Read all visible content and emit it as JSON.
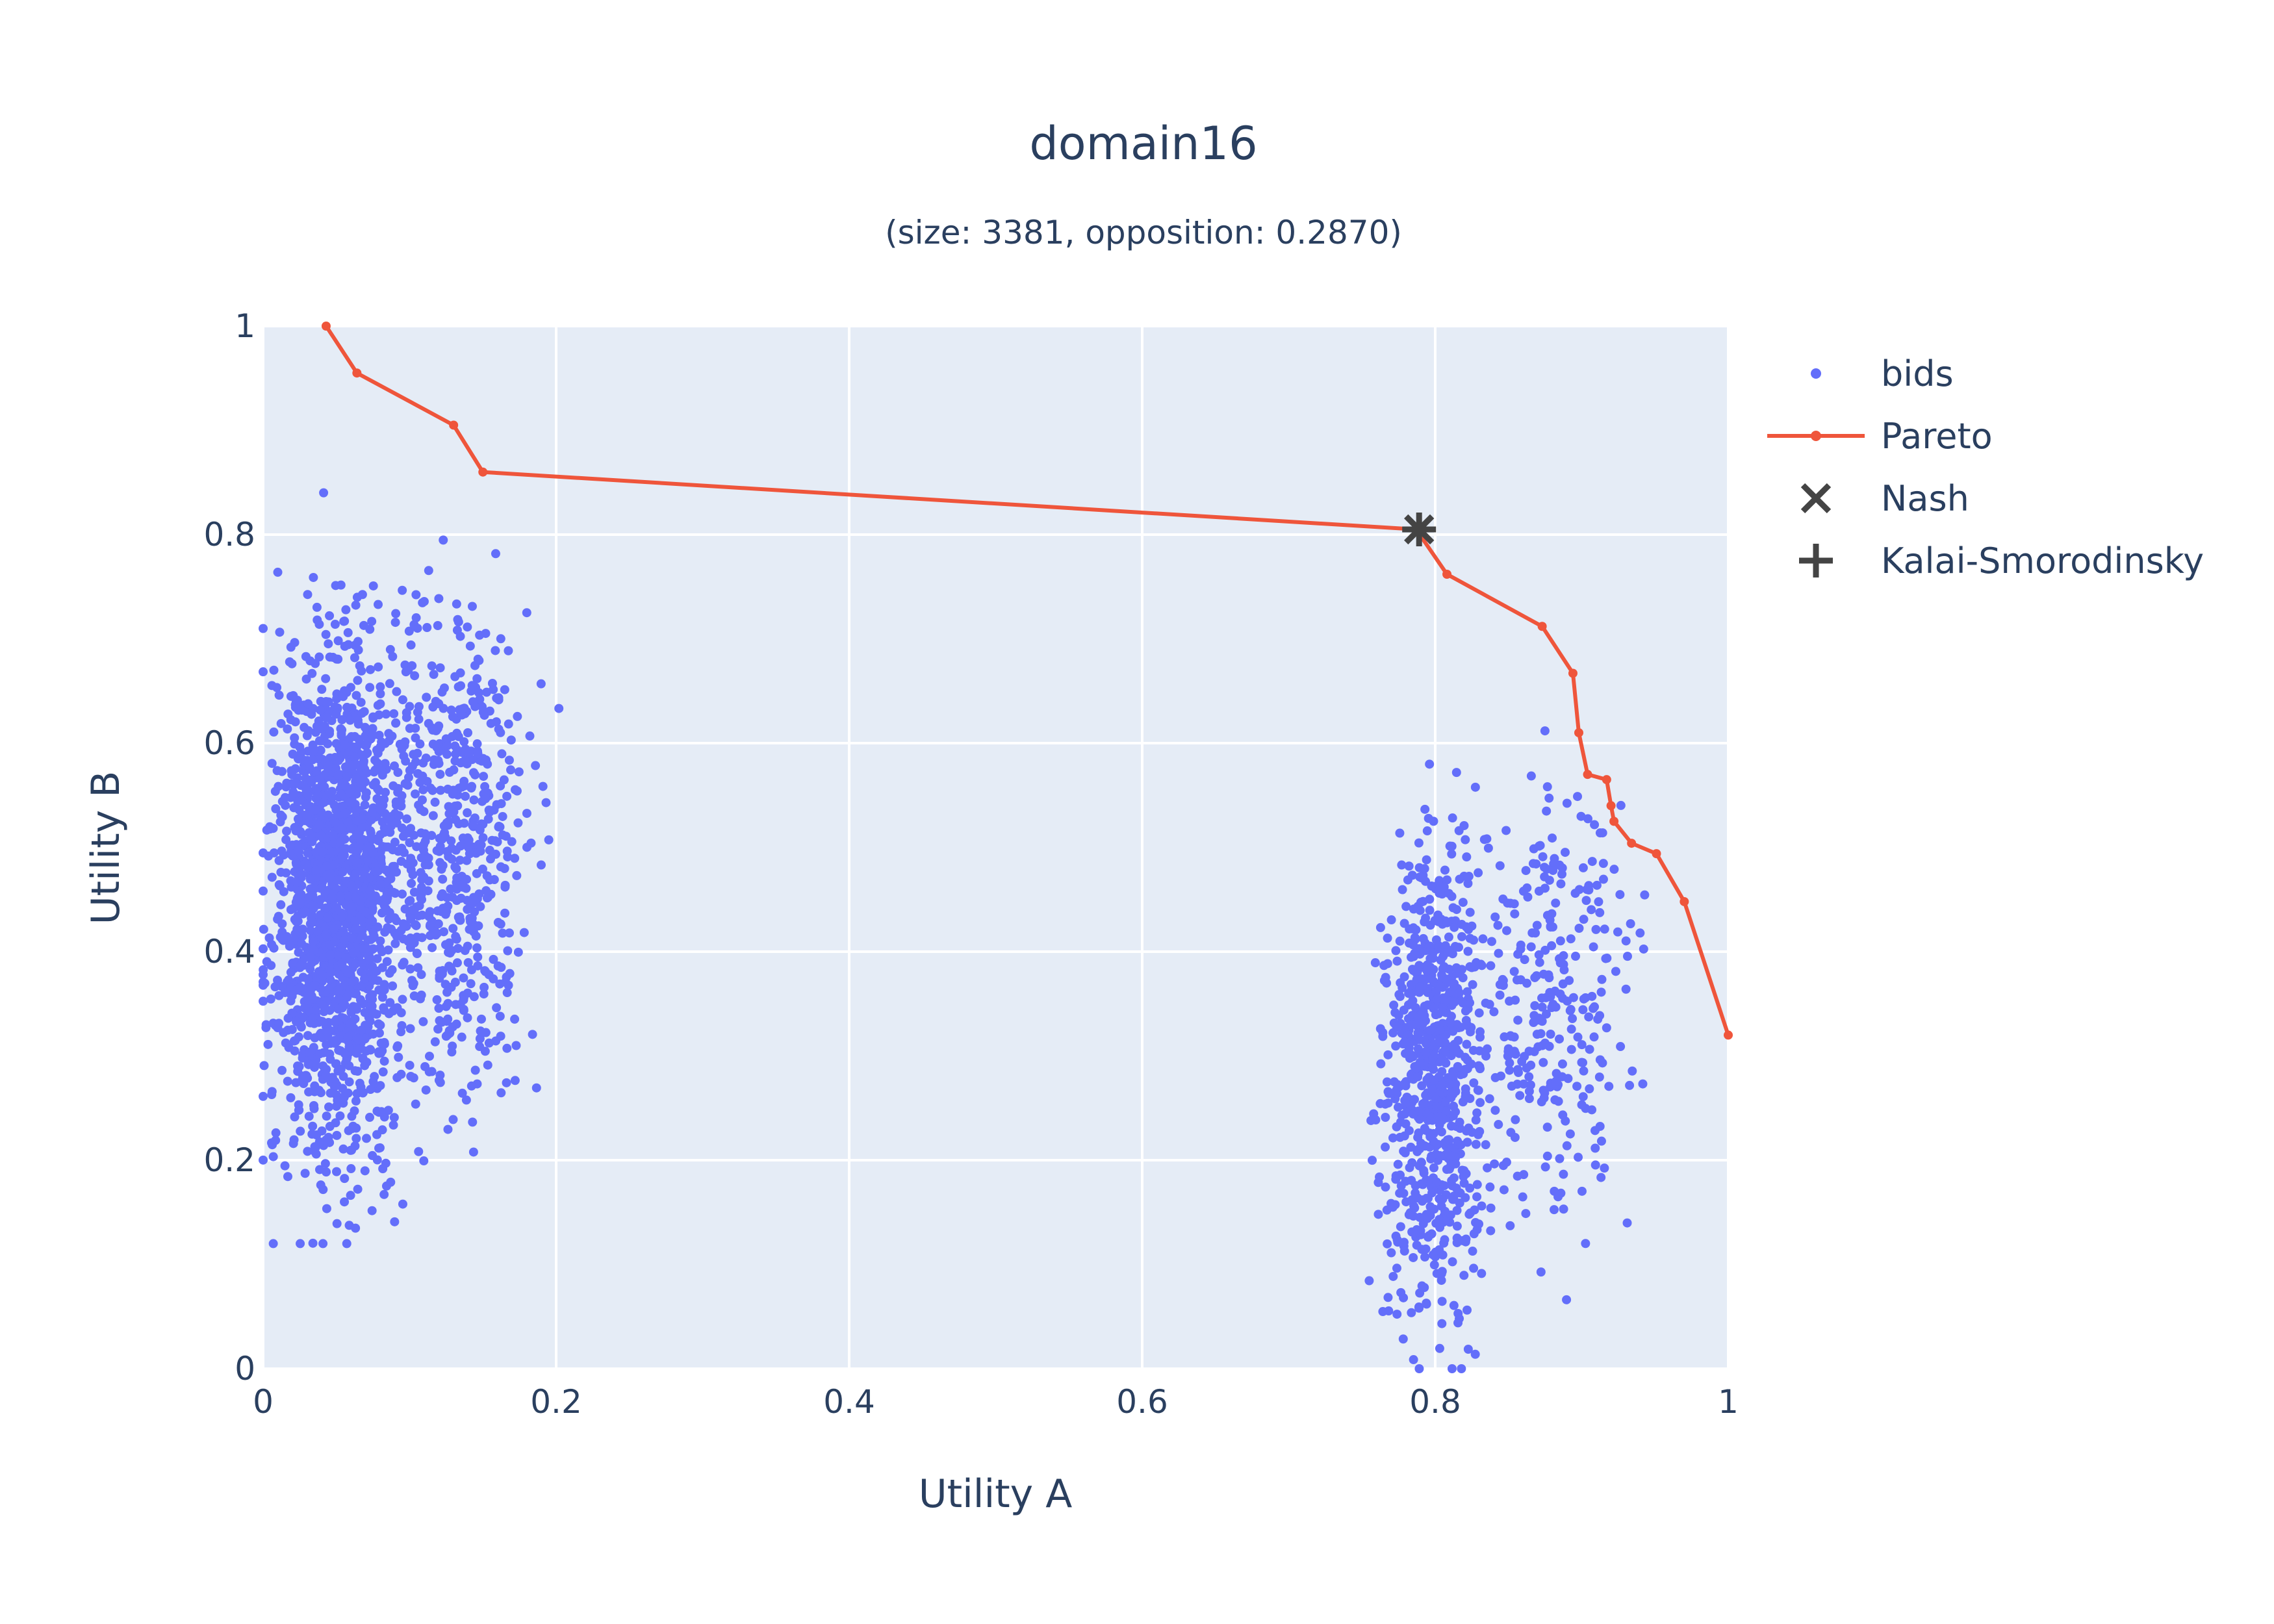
{
  "chart_data": {
    "type": "scatter",
    "title": "domain16",
    "subtitle": "(size: 3381, opposition: 0.2870)",
    "xlabel": "Utility A",
    "ylabel": "Utility B",
    "xlim": [
      0,
      1
    ],
    "ylim": [
      0,
      1
    ],
    "x_ticks": [
      "0",
      "0.2",
      "0.4",
      "0.6",
      "0.8",
      "1"
    ],
    "y_ticks": [
      "0",
      "0.2",
      "0.4",
      "0.6",
      "0.8",
      "1"
    ],
    "grid": true,
    "legend_position": "right",
    "colors": {
      "bids": "#636efa",
      "pareto": "#ef553b",
      "markers": "#444444",
      "plot_bg": "#e5ecf6",
      "grid": "#ffffff"
    },
    "legend": [
      {
        "name": "bids",
        "symbol": "dot"
      },
      {
        "name": "Pareto",
        "symbol": "line-dot"
      },
      {
        "name": "Nash",
        "symbol": "x"
      },
      {
        "name": "Kalai-Smorodinsky",
        "symbol": "cross"
      }
    ],
    "bids_clusters": [
      {
        "x_range": [
          0.0,
          0.12
        ],
        "y_range": [
          0.12,
          0.9
        ],
        "count": 1700,
        "center": [
          0.05,
          0.45
        ]
      },
      {
        "x_range": [
          0.08,
          0.22
        ],
        "y_range": [
          0.13,
          0.85
        ],
        "count": 600,
        "center": [
          0.13,
          0.5
        ]
      },
      {
        "x_range": [
          0.75,
          0.85
        ],
        "y_range": [
          0.0,
          0.68
        ],
        "count": 800,
        "center": [
          0.8,
          0.28
        ]
      },
      {
        "x_range": [
          0.82,
          0.96
        ],
        "y_range": [
          0.06,
          0.65
        ],
        "count": 280,
        "center": [
          0.88,
          0.35
        ]
      }
    ],
    "pareto": [
      {
        "x": 0.043,
        "y": 1.0
      },
      {
        "x": 0.064,
        "y": 0.955
      },
      {
        "x": 0.13,
        "y": 0.905
      },
      {
        "x": 0.15,
        "y": 0.86
      },
      {
        "x": 0.787,
        "y": 0.805
      },
      {
        "x": 0.808,
        "y": 0.762
      },
      {
        "x": 0.873,
        "y": 0.712
      },
      {
        "x": 0.894,
        "y": 0.667
      },
      {
        "x": 0.898,
        "y": 0.61
      },
      {
        "x": 0.904,
        "y": 0.57
      },
      {
        "x": 0.917,
        "y": 0.565
      },
      {
        "x": 0.92,
        "y": 0.54
      },
      {
        "x": 0.922,
        "y": 0.525
      },
      {
        "x": 0.934,
        "y": 0.504
      },
      {
        "x": 0.951,
        "y": 0.494
      },
      {
        "x": 0.97,
        "y": 0.448
      },
      {
        "x": 1.0,
        "y": 0.32
      }
    ],
    "nash": {
      "x": 0.789,
      "y": 0.805
    },
    "kalai_smorodinsky": {
      "x": 0.789,
      "y": 0.805
    }
  }
}
